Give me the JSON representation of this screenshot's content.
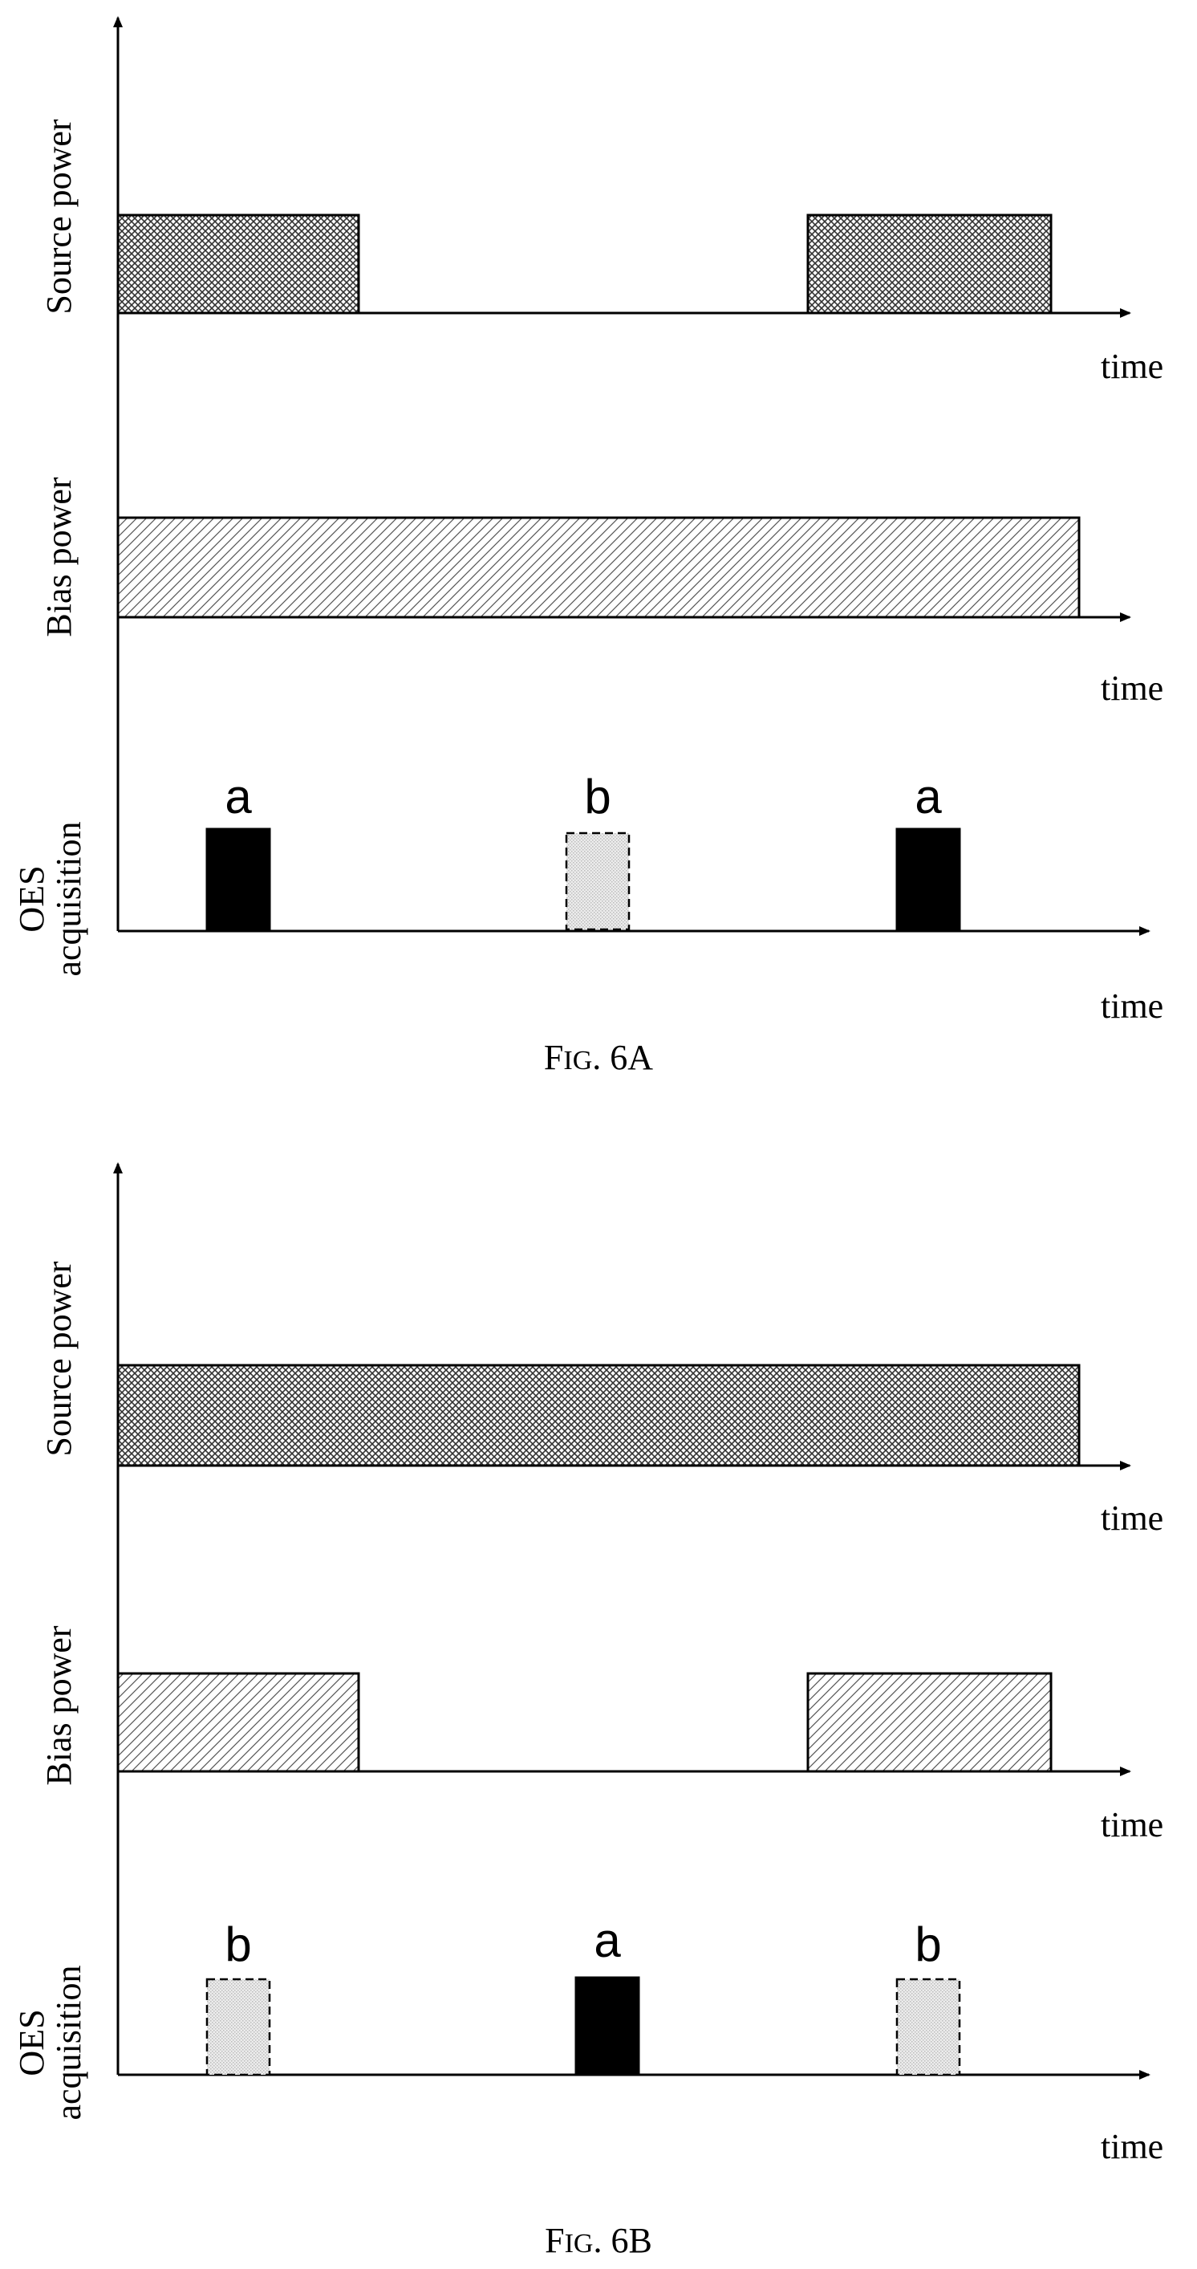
{
  "figures": [
    {
      "id": "fig-a",
      "caption_prefix": "F",
      "caption_small_caps": "IG",
      "caption_rest": ". 6A",
      "panels": [
        {
          "label": "Source power",
          "axis_label": "time",
          "pulses": [
            {
              "start": 0.0,
              "end": 0.27,
              "pattern": "crosshatch"
            },
            {
              "start": 0.77,
              "end": 1.0,
              "pattern": "crosshatch"
            }
          ]
        },
        {
          "label": "Bias power",
          "axis_label": "time",
          "pulses": [
            {
              "start": 0.0,
              "end": 1.0,
              "pattern": "diagonal"
            }
          ]
        },
        {
          "label_line1": "OES",
          "label_line2": "acquisition",
          "axis_label": "time",
          "markers": [
            {
              "letter": "a",
              "position": 0.14,
              "style": "solid"
            },
            {
              "letter": "b",
              "position": 0.5,
              "style": "dotted"
            },
            {
              "letter": "a",
              "position": 0.86,
              "style": "solid"
            }
          ]
        }
      ]
    },
    {
      "id": "fig-b",
      "caption_prefix": "F",
      "caption_small_caps": "IG",
      "caption_rest": ". 6B",
      "panels": [
        {
          "label": "Source power",
          "axis_label": "time",
          "pulses": [
            {
              "start": 0.0,
              "end": 1.0,
              "pattern": "crosshatch"
            }
          ]
        },
        {
          "label": "Bias power",
          "axis_label": "time",
          "pulses": [
            {
              "start": 0.0,
              "end": 0.27,
              "pattern": "diagonal"
            },
            {
              "start": 0.77,
              "end": 1.0,
              "pattern": "diagonal"
            }
          ]
        },
        {
          "label_line1": "OES",
          "label_line2": "acquisition",
          "axis_label": "time",
          "markers": [
            {
              "letter": "b",
              "position": 0.14,
              "style": "dotted"
            },
            {
              "letter": "a",
              "position": 0.5,
              "style": "solid"
            },
            {
              "letter": "b",
              "position": 0.86,
              "style": "dotted"
            }
          ]
        }
      ]
    }
  ],
  "colors": {
    "line": "#000000",
    "solid_marker": "#000000",
    "dotted_marker_fill": "#cfcfcf",
    "crosshatch_fill": "#333333",
    "diagonal_fill": "#555555",
    "background": "#ffffff"
  }
}
